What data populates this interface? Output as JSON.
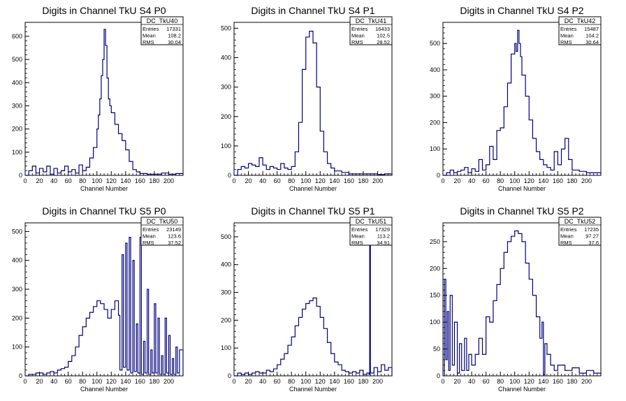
{
  "chart_data": [
    {
      "type": "area",
      "title": "Digits in Channel TkU S4 P0",
      "xlabel": "Channel Number",
      "ylabel": "",
      "xlim": [
        0,
        220
      ],
      "ylim": [
        0,
        660
      ],
      "xticks": [
        0,
        20,
        40,
        60,
        80,
        100,
        120,
        140,
        160,
        180,
        200
      ],
      "yticks": [
        0,
        100,
        200,
        300,
        400,
        500,
        600
      ],
      "stats": {
        "name": "DC_TkU40",
        "entries": "17331",
        "mean": "108.2",
        "rms": "30.04"
      },
      "x": [
        0,
        5,
        10,
        15,
        20,
        25,
        30,
        35,
        40,
        45,
        50,
        55,
        60,
        65,
        70,
        75,
        80,
        85,
        90,
        95,
        100,
        102,
        104,
        106,
        108,
        110,
        112,
        114,
        116,
        118,
        120,
        125,
        130,
        135,
        140,
        145,
        150,
        155,
        160,
        170,
        180,
        190,
        200,
        210,
        220
      ],
      "values": [
        0,
        20,
        40,
        10,
        30,
        15,
        40,
        5,
        30,
        10,
        20,
        40,
        15,
        25,
        10,
        45,
        20,
        35,
        75,
        120,
        200,
        260,
        330,
        430,
        500,
        630,
        560,
        420,
        330,
        300,
        270,
        220,
        180,
        150,
        110,
        60,
        25,
        15,
        8,
        5,
        5,
        10,
        5,
        8,
        0
      ]
    },
    {
      "type": "area",
      "title": "Digits in Channel TkU S4 P1",
      "xlabel": "Channel Number",
      "ylabel": "",
      "xlim": [
        0,
        220
      ],
      "ylim": [
        0,
        520
      ],
      "xticks": [
        0,
        20,
        40,
        60,
        80,
        100,
        120,
        140,
        160,
        180,
        200
      ],
      "yticks": [
        0,
        100,
        200,
        300,
        400,
        500
      ],
      "stats": {
        "name": "DC_TkU41",
        "entries": "16433",
        "mean": "102.5",
        "rms": "28.52"
      },
      "x": [
        0,
        5,
        10,
        15,
        20,
        25,
        30,
        35,
        40,
        45,
        50,
        55,
        60,
        65,
        70,
        75,
        80,
        85,
        90,
        95,
        100,
        105,
        110,
        115,
        120,
        125,
        130,
        135,
        140,
        150,
        160,
        170,
        180,
        190,
        200,
        210,
        220
      ],
      "values": [
        0,
        20,
        30,
        25,
        40,
        35,
        30,
        60,
        35,
        20,
        30,
        25,
        20,
        40,
        25,
        20,
        30,
        80,
        180,
        360,
        470,
        490,
        450,
        300,
        150,
        80,
        40,
        25,
        15,
        10,
        5,
        5,
        5,
        5,
        3,
        5,
        0
      ]
    },
    {
      "type": "area",
      "title": "Digits in Channel TkU S4 P2",
      "xlabel": "Channel Number",
      "ylabel": "",
      "xlim": [
        0,
        220
      ],
      "ylim": [
        0,
        580
      ],
      "xticks": [
        0,
        20,
        40,
        60,
        80,
        100,
        120,
        140,
        160,
        180,
        200
      ],
      "yticks": [
        0,
        100,
        200,
        300,
        400,
        500
      ],
      "stats": {
        "name": "DC_TkU42",
        "entries": "15487",
        "mean": "104.2",
        "rms": "30.64"
      },
      "x": [
        0,
        5,
        10,
        15,
        20,
        25,
        30,
        35,
        40,
        45,
        50,
        55,
        60,
        65,
        70,
        75,
        80,
        85,
        90,
        95,
        100,
        102,
        104,
        106,
        108,
        110,
        115,
        120,
        125,
        130,
        135,
        140,
        145,
        150,
        155,
        160,
        165,
        170,
        175,
        180,
        190,
        200,
        210,
        220
      ],
      "values": [
        0,
        10,
        20,
        10,
        15,
        20,
        30,
        10,
        25,
        15,
        60,
        20,
        40,
        110,
        60,
        170,
        180,
        260,
        350,
        460,
        500,
        470,
        550,
        500,
        450,
        380,
        300,
        210,
        140,
        90,
        60,
        40,
        30,
        20,
        90,
        40,
        100,
        140,
        60,
        20,
        15,
        10,
        10,
        0
      ]
    },
    {
      "type": "area",
      "title": "Digits in Channel TkU S5 P0",
      "xlabel": "Channel Number",
      "ylabel": "",
      "xlim": [
        0,
        220
      ],
      "ylim": [
        0,
        530
      ],
      "xticks": [
        0,
        20,
        40,
        60,
        80,
        100,
        120,
        140,
        160,
        180,
        200
      ],
      "yticks": [
        0,
        100,
        200,
        300,
        400,
        500
      ],
      "stats": {
        "name": "DC_TkU50",
        "entries": "23149",
        "mean": "123.6",
        "rms": "37.52"
      },
      "x": [
        0,
        5,
        10,
        15,
        20,
        25,
        30,
        35,
        40,
        45,
        50,
        55,
        60,
        65,
        70,
        75,
        80,
        85,
        90,
        95,
        100,
        105,
        110,
        115,
        120,
        125,
        130,
        132,
        135,
        137,
        140,
        142,
        145,
        147,
        150,
        152,
        155,
        157,
        160,
        162,
        165,
        167,
        170,
        172,
        175,
        177,
        180,
        182,
        185,
        187,
        190,
        192,
        195,
        197,
        200,
        202,
        205,
        207,
        210,
        212,
        215,
        220
      ],
      "values": [
        0,
        5,
        5,
        10,
        10,
        5,
        10,
        15,
        10,
        20,
        25,
        30,
        50,
        70,
        100,
        140,
        170,
        200,
        220,
        240,
        260,
        250,
        230,
        200,
        230,
        260,
        210,
        20,
        420,
        30,
        460,
        20,
        480,
        10,
        400,
        15,
        180,
        10,
        480,
        5,
        120,
        10,
        300,
        5,
        90,
        10,
        250,
        10,
        200,
        5,
        70,
        5,
        200,
        10,
        140,
        5,
        60,
        5,
        100,
        10,
        90,
        0
      ]
    },
    {
      "type": "area",
      "title": "Digits in Channel TkU S5 P1",
      "xlabel": "Channel Number",
      "ylabel": "",
      "xlim": [
        0,
        220
      ],
      "ylim": [
        0,
        550
      ],
      "xticks": [
        0,
        20,
        40,
        60,
        80,
        100,
        120,
        140,
        160,
        180,
        200
      ],
      "yticks": [
        0,
        100,
        200,
        300,
        400,
        500
      ],
      "stats": {
        "name": "DC_TkU51",
        "entries": "17329",
        "mean": "113.2",
        "rms": "34.91"
      },
      "x": [
        0,
        5,
        10,
        15,
        20,
        25,
        30,
        35,
        40,
        45,
        50,
        55,
        60,
        65,
        70,
        75,
        80,
        85,
        90,
        95,
        100,
        105,
        110,
        115,
        120,
        125,
        130,
        135,
        140,
        145,
        150,
        155,
        160,
        165,
        170,
        175,
        180,
        185,
        188,
        189,
        190,
        195,
        200,
        205,
        210,
        215,
        220
      ],
      "values": [
        0,
        10,
        5,
        10,
        5,
        10,
        15,
        10,
        10,
        20,
        15,
        25,
        40,
        60,
        80,
        110,
        140,
        180,
        210,
        240,
        260,
        270,
        280,
        250,
        210,
        170,
        120,
        80,
        50,
        40,
        20,
        15,
        10,
        15,
        10,
        20,
        5,
        10,
        5,
        500,
        10,
        30,
        15,
        40,
        20,
        30,
        0
      ]
    },
    {
      "type": "area",
      "title": "Digits in Channel TkU S5 P2",
      "xlabel": "Channel Number",
      "ylabel": "",
      "xlim": [
        0,
        220
      ],
      "ylim": [
        0,
        285
      ],
      "xticks": [
        0,
        20,
        40,
        60,
        80,
        100,
        120,
        140,
        160,
        180,
        200
      ],
      "yticks": [
        0,
        50,
        100,
        150,
        200,
        250
      ],
      "stats": {
        "name": "DC_TkU52",
        "entries": "17235",
        "mean": "97.27",
        "rms": "37.6"
      },
      "x": [
        0,
        2,
        4,
        6,
        8,
        10,
        13,
        16,
        20,
        23,
        26,
        30,
        33,
        36,
        40,
        45,
        50,
        55,
        60,
        65,
        70,
        75,
        80,
        85,
        90,
        95,
        100,
        105,
        110,
        115,
        120,
        125,
        130,
        135,
        138,
        140,
        142,
        145,
        150,
        155,
        160,
        170,
        180,
        190,
        200,
        210,
        220
      ],
      "values": [
        0,
        180,
        30,
        120,
        10,
        150,
        20,
        100,
        5,
        60,
        10,
        70,
        10,
        40,
        20,
        40,
        70,
        40,
        110,
        100,
        140,
        170,
        200,
        230,
        250,
        260,
        270,
        265,
        250,
        210,
        180,
        150,
        110,
        70,
        100,
        2,
        60,
        40,
        20,
        10,
        20,
        10,
        15,
        5,
        10,
        5,
        0
      ]
    }
  ]
}
